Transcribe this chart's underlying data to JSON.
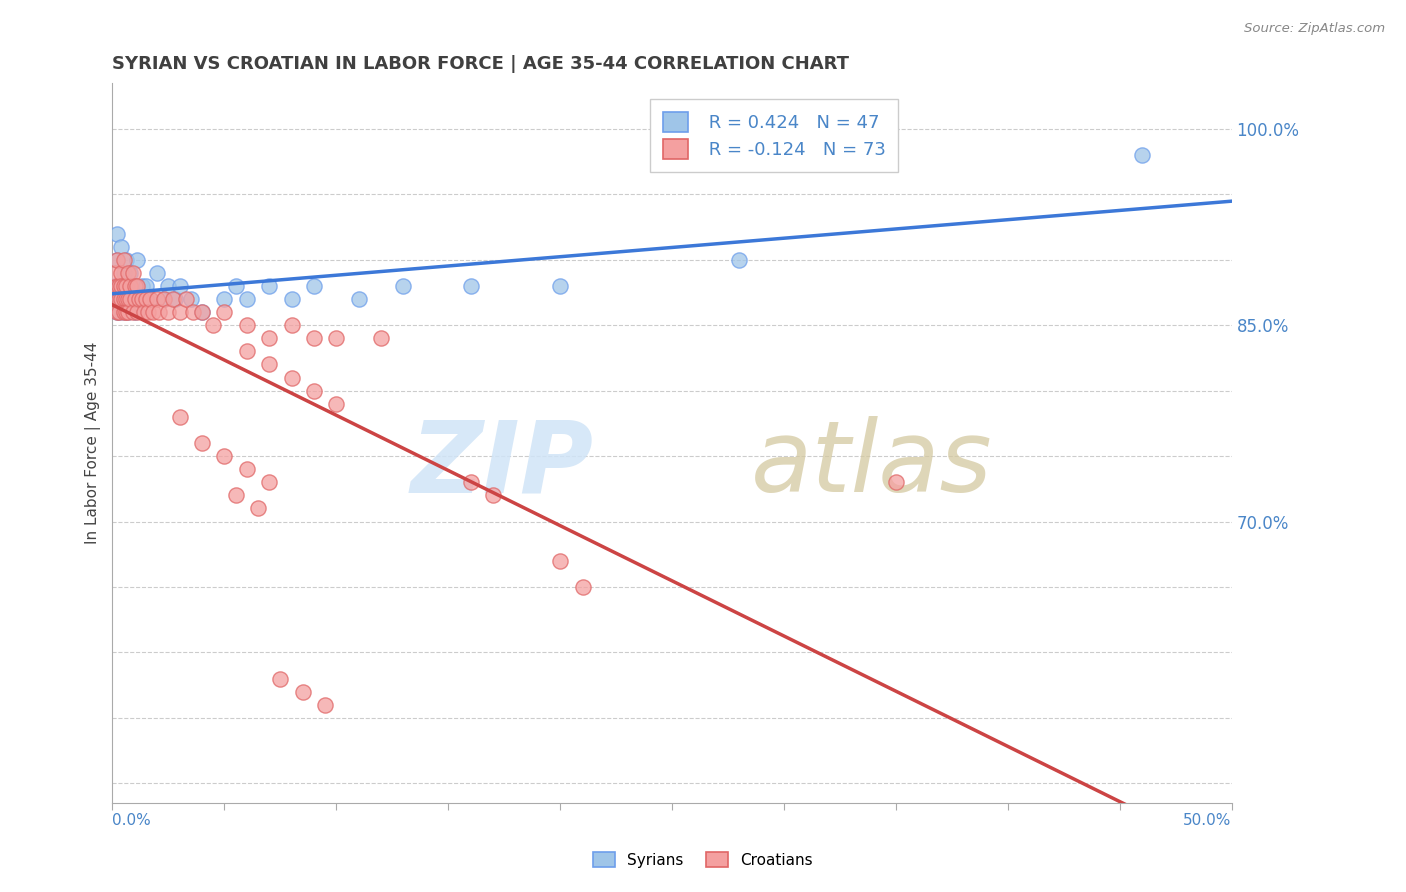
{
  "title": "SYRIAN VS CROATIAN IN LABOR FORCE | AGE 35-44 CORRELATION CHART",
  "source": "Source: ZipAtlas.com",
  "ylabel": "In Labor Force | Age 35-44",
  "x_range": [
    0.0,
    0.5
  ],
  "y_range": [
    0.485,
    1.035
  ],
  "y_ticks": [
    0.5,
    0.55,
    0.6,
    0.65,
    0.7,
    0.75,
    0.8,
    0.85,
    0.9,
    0.95,
    1.0
  ],
  "y_tick_labels_right": [
    "",
    "",
    "",
    "",
    "70.0%",
    "",
    "",
    "85.0%",
    "",
    "",
    "100.0%"
  ],
  "legend_r_syrian": "R = 0.424",
  "legend_n_syrian": "N = 47",
  "legend_r_croatian": "R = -0.124",
  "legend_n_croatian": "N = 73",
  "syrian_color": "#9fc5e8",
  "croatian_color": "#f4a0a0",
  "syrian_edge_color": "#6d9eeb",
  "croatian_edge_color": "#e06666",
  "syrian_line_color": "#3c78d8",
  "croatian_line_color": "#cc4444",
  "axis_label_color": "#4a86c8",
  "grid_color": "#cccccc",
  "title_color": "#404040",
  "watermark_zip_color": "#d0e4f7",
  "watermark_atlas_color": "#d4c9a0",
  "syrian_x": [
    0.001,
    0.001,
    0.002,
    0.002,
    0.002,
    0.003,
    0.003,
    0.003,
    0.004,
    0.004,
    0.004,
    0.005,
    0.005,
    0.005,
    0.006,
    0.006,
    0.007,
    0.007,
    0.008,
    0.008,
    0.009,
    0.01,
    0.01,
    0.011,
    0.012,
    0.013,
    0.015,
    0.017,
    0.02,
    0.023,
    0.025,
    0.028,
    0.03,
    0.035,
    0.04,
    0.05,
    0.055,
    0.06,
    0.07,
    0.08,
    0.09,
    0.11,
    0.13,
    0.16,
    0.2,
    0.28,
    0.46
  ],
  "syrian_y": [
    0.88,
    0.87,
    0.9,
    0.86,
    0.92,
    0.88,
    0.87,
    0.86,
    0.91,
    0.88,
    0.87,
    0.89,
    0.86,
    0.88,
    0.9,
    0.87,
    0.88,
    0.86,
    0.89,
    0.87,
    0.88,
    0.86,
    0.88,
    0.9,
    0.87,
    0.88,
    0.88,
    0.87,
    0.89,
    0.87,
    0.88,
    0.87,
    0.88,
    0.87,
    0.86,
    0.87,
    0.88,
    0.87,
    0.88,
    0.87,
    0.88,
    0.87,
    0.88,
    0.88,
    0.88,
    0.9,
    0.98
  ],
  "croatian_x": [
    0.001,
    0.001,
    0.002,
    0.002,
    0.002,
    0.003,
    0.003,
    0.003,
    0.004,
    0.004,
    0.004,
    0.005,
    0.005,
    0.005,
    0.005,
    0.006,
    0.006,
    0.006,
    0.007,
    0.007,
    0.007,
    0.008,
    0.008,
    0.009,
    0.009,
    0.01,
    0.01,
    0.011,
    0.011,
    0.012,
    0.013,
    0.014,
    0.015,
    0.016,
    0.017,
    0.018,
    0.02,
    0.021,
    0.023,
    0.025,
    0.027,
    0.03,
    0.033,
    0.036,
    0.04,
    0.045,
    0.05,
    0.06,
    0.07,
    0.08,
    0.09,
    0.1,
    0.12,
    0.06,
    0.07,
    0.08,
    0.09,
    0.1,
    0.03,
    0.04,
    0.05,
    0.06,
    0.07,
    0.16,
    0.17,
    0.055,
    0.065,
    0.2,
    0.21,
    0.35,
    0.075,
    0.085,
    0.095
  ],
  "croatian_y": [
    0.89,
    0.87,
    0.9,
    0.88,
    0.86,
    0.88,
    0.87,
    0.86,
    0.89,
    0.87,
    0.88,
    0.9,
    0.88,
    0.87,
    0.86,
    0.88,
    0.87,
    0.86,
    0.89,
    0.87,
    0.86,
    0.88,
    0.87,
    0.89,
    0.86,
    0.88,
    0.87,
    0.88,
    0.86,
    0.87,
    0.87,
    0.86,
    0.87,
    0.86,
    0.87,
    0.86,
    0.87,
    0.86,
    0.87,
    0.86,
    0.87,
    0.86,
    0.87,
    0.86,
    0.86,
    0.85,
    0.86,
    0.85,
    0.84,
    0.85,
    0.84,
    0.84,
    0.84,
    0.83,
    0.82,
    0.81,
    0.8,
    0.79,
    0.78,
    0.76,
    0.75,
    0.74,
    0.73,
    0.73,
    0.72,
    0.72,
    0.71,
    0.67,
    0.65,
    0.73,
    0.58,
    0.57,
    0.56
  ]
}
